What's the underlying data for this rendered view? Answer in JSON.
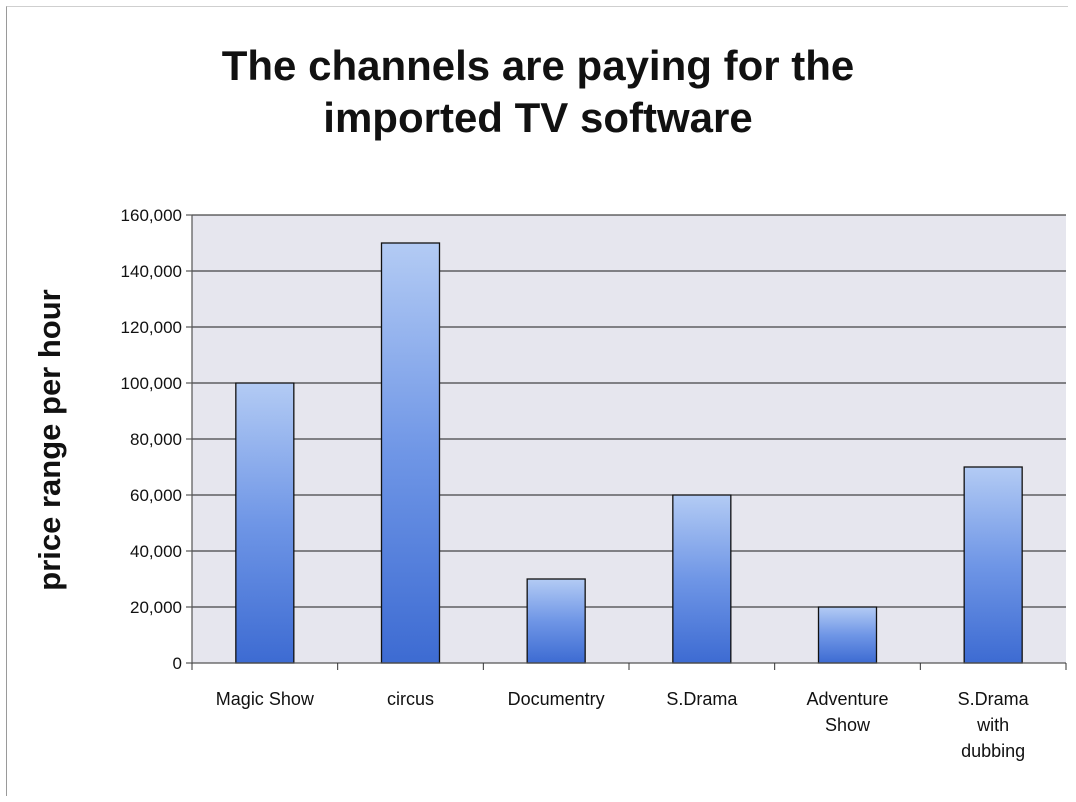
{
  "chart_data": {
    "type": "bar",
    "title": "The channels are paying for the imported TV software",
    "title_lines": [
      "The channels are paying for the",
      "imported TV software"
    ],
    "xlabel": "",
    "ylabel": "price range per hour",
    "categories": [
      [
        "Magic Show"
      ],
      [
        "circus"
      ],
      [
        "Documentry"
      ],
      [
        "S.Drama"
      ],
      [
        "Adventure",
        "Show"
      ],
      [
        "S.Drama",
        "with",
        "dubbing"
      ]
    ],
    "values": [
      100000,
      150000,
      30000,
      60000,
      20000,
      70000
    ],
    "ylim": [
      0,
      160000
    ],
    "yticks": [
      0,
      20000,
      40000,
      60000,
      80000,
      100000,
      120000,
      140000,
      160000
    ],
    "ytick_labels": [
      "0",
      "20,000",
      "40,000",
      "60,000",
      "80,000",
      "100,000",
      "120,000",
      "140,000",
      "160,000"
    ],
    "grid": true,
    "legend": "none",
    "colors": {
      "bar_light": "#a9c4f2",
      "bar_dark": "#4572d6",
      "plot_bg": "#e6e6ee",
      "gridline": "#1a1a1a"
    }
  }
}
